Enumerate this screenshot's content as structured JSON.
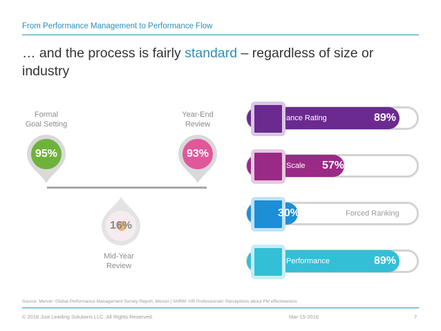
{
  "header": {
    "title": "From Performance Management to Performance Flow"
  },
  "headline": {
    "before": "… and the process is fairly ",
    "highlight": "standard",
    "after": " – regardless of size or industry"
  },
  "pins": [
    {
      "label_line1": "Formal",
      "label_line2": "Goal Setting",
      "value": "95%",
      "color": "#6fb23b"
    },
    {
      "label_line1": "Year-End",
      "label_line2": "Review",
      "value": "93%",
      "color": "#e0579a"
    },
    {
      "label_line1": "Mid-Year",
      "label_line2": "Review",
      "value": "16%",
      "color": "#f2e6ee"
    }
  ],
  "bars": [
    {
      "label": "ance Rating",
      "value": "89%",
      "fill": 0.89,
      "color": "#6b2a8f"
    },
    {
      "label": "Scale",
      "value": "57%",
      "fill": 0.57,
      "color": "#9a2a86"
    },
    {
      "label": "Forced Ranking",
      "value": "30%",
      "fill": 0.3,
      "color": "#1d8fd6"
    },
    {
      "label": "Performance",
      "value": "89%",
      "fill": 0.89,
      "color": "#33bfd6"
    }
  ],
  "source": "Source: Mercer: Global Performance Management Survey Report, Mercer | SHRM: HR Professionals’ Perceptions about PM effectiveness",
  "footer": {
    "copyright": "© 2016 Just Leading Solutions LLC. All Rights Reserved.",
    "date": "Mar-15-2016",
    "page": "7"
  }
}
